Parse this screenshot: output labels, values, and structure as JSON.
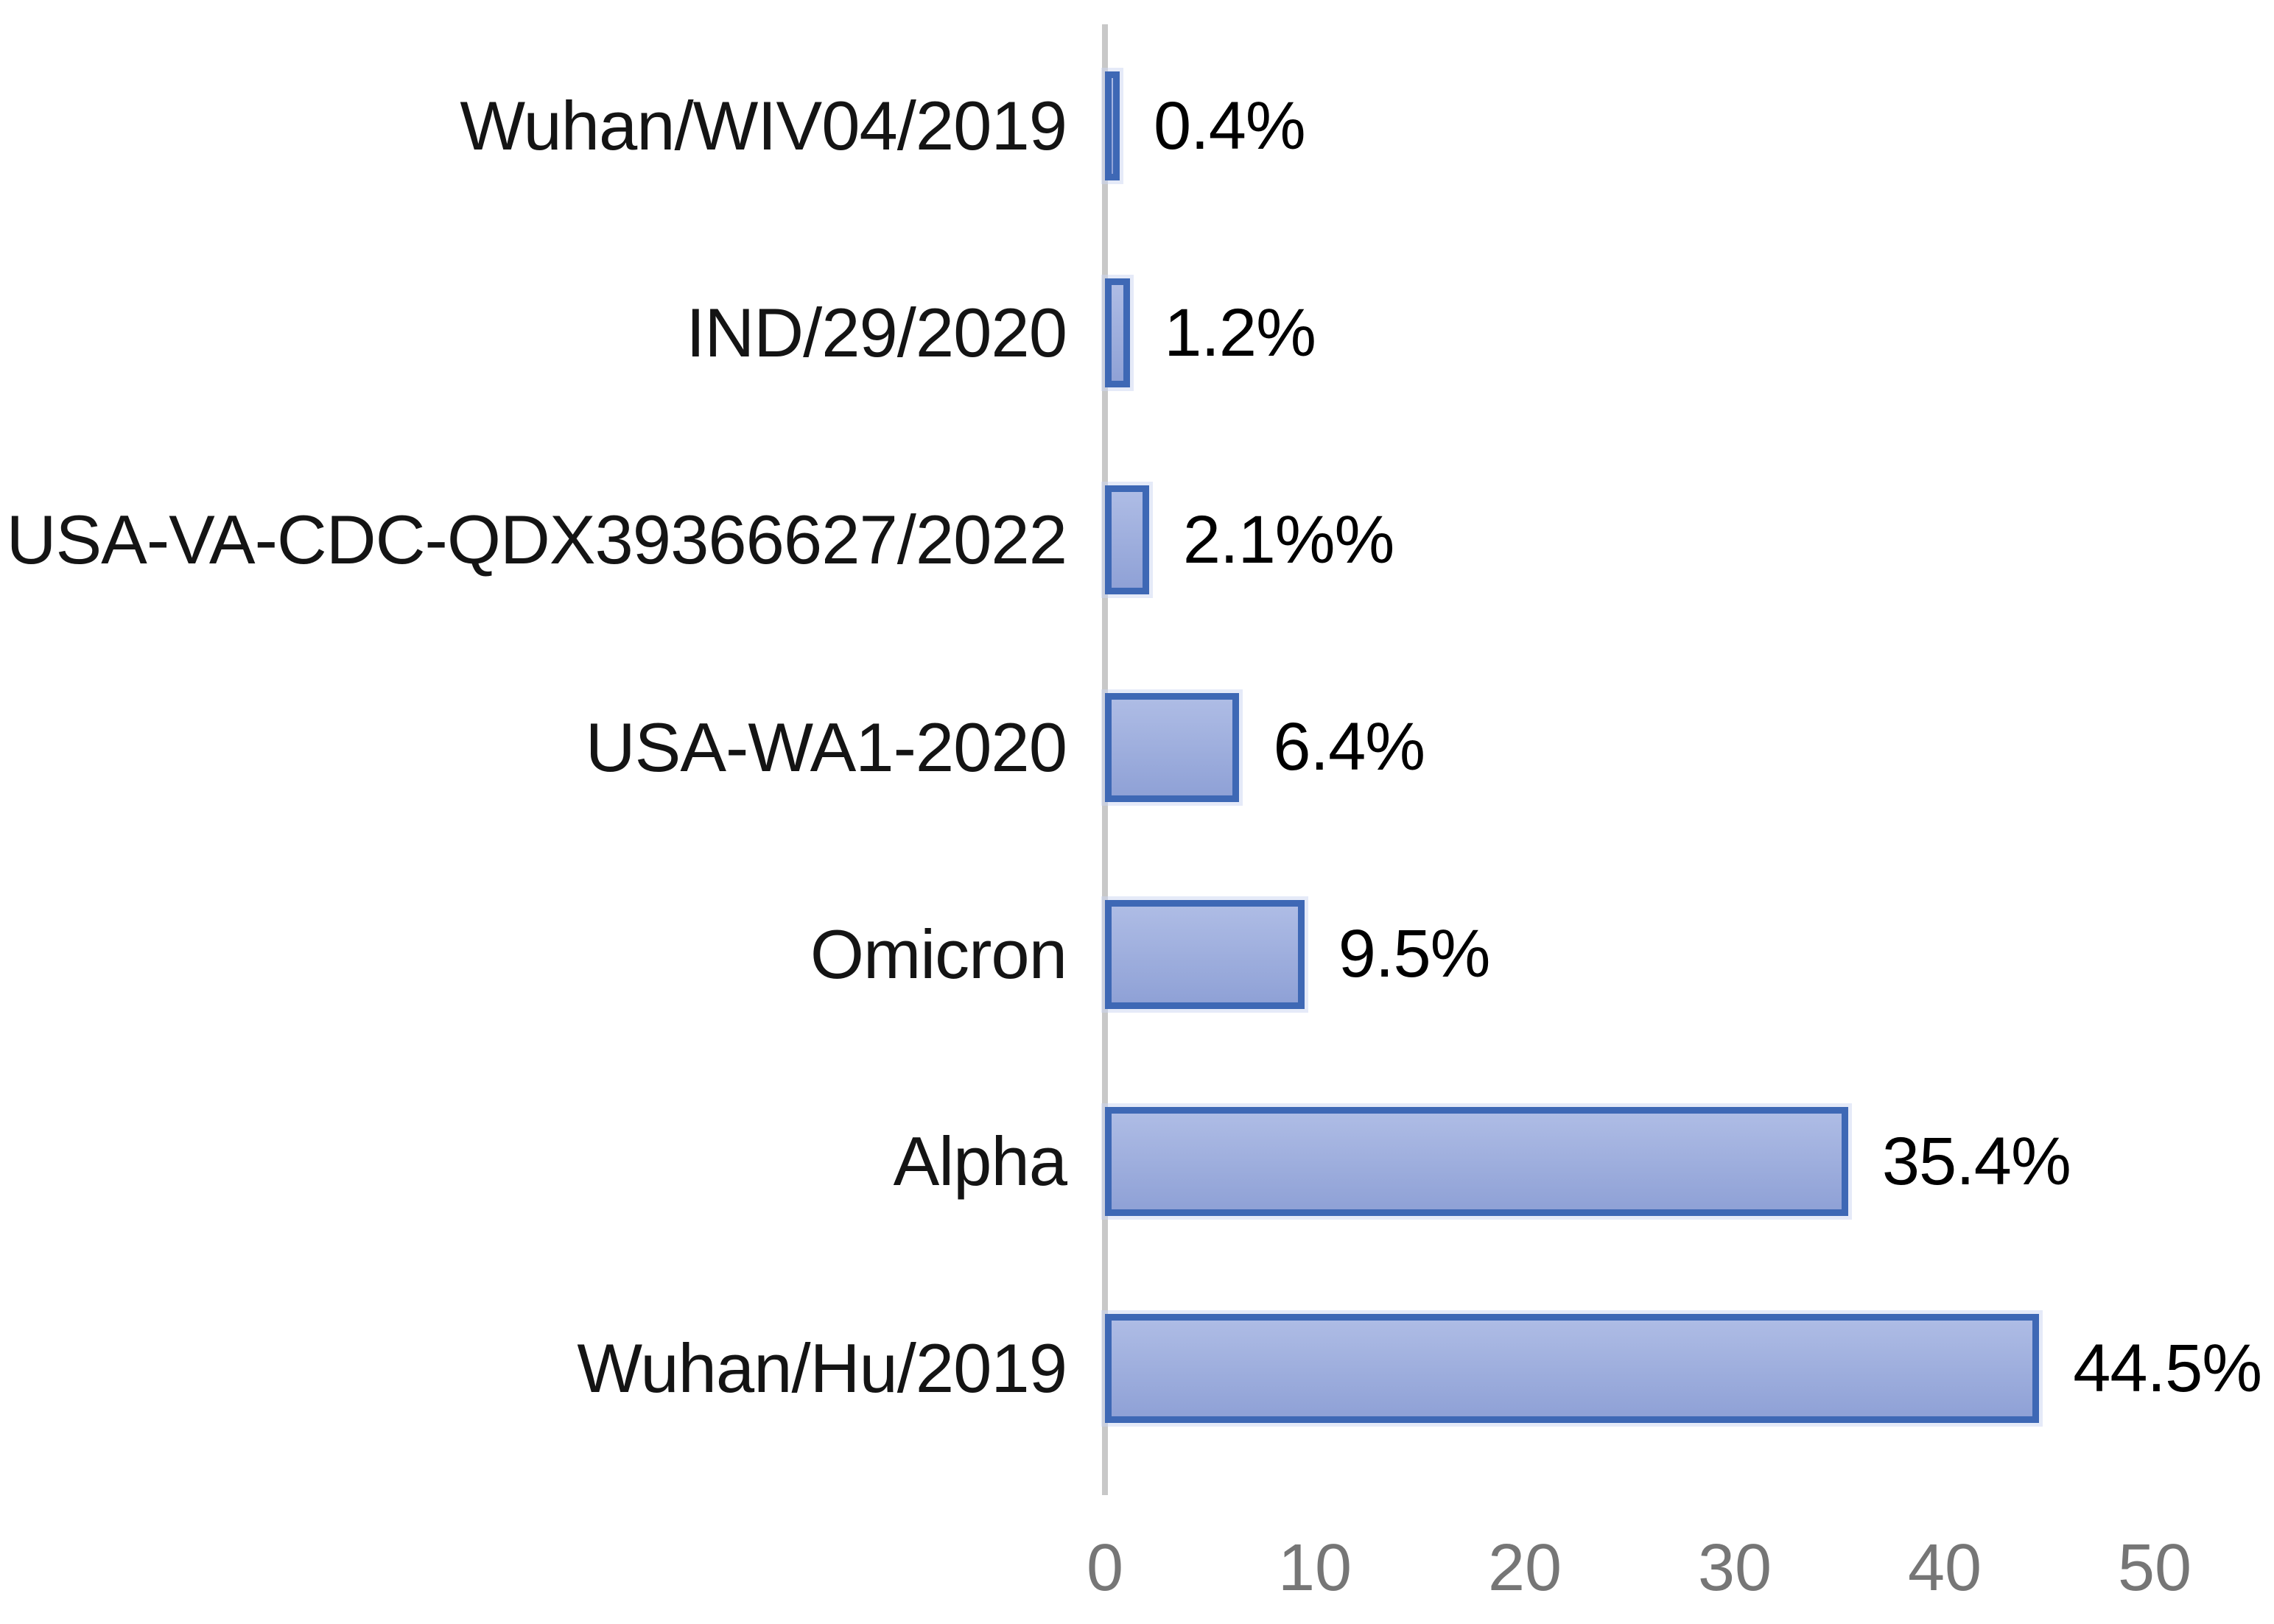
{
  "chart_data": {
    "type": "bar",
    "orientation": "horizontal",
    "title": "",
    "xlabel": "",
    "ylabel": "",
    "categories": [
      "Wuhan/WIV04/2019",
      "IND/29/2020",
      "USA-VA-CDC-QDX39366627/2022",
      "USA-WA1-2020",
      "Omicron",
      "Alpha",
      "Wuhan/Hu/2019"
    ],
    "values": [
      0.4,
      1.2,
      2.1,
      6.4,
      9.5,
      35.4,
      44.5
    ],
    "value_labels": [
      "0.4%",
      "1.2%",
      "2.1%%",
      "6.4%",
      "9.5%",
      "35.4%",
      "44.5%"
    ],
    "x_axis_ticks": [
      "0",
      "10",
      "20",
      "30",
      "40",
      "50"
    ],
    "x_axis_tick_values": [
      0,
      10,
      20,
      30,
      40,
      50
    ],
    "xlim": [
      0,
      50
    ],
    "grid": false,
    "legend": false,
    "colors": {
      "bar_fill_top": "#aebce5",
      "bar_fill_bottom": "#8fa1d6",
      "bar_border": "#3e68b5",
      "axis_line": "#c8c8c8",
      "tick_text": "#767676",
      "label_text": "#141414",
      "value_text": "#000000",
      "background": "#ffffff"
    }
  }
}
